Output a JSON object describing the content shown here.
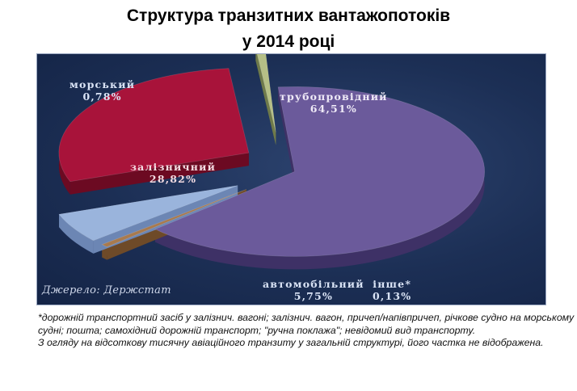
{
  "title_line1": "Структура транзитних вантажопотоків",
  "title_line2": "у 2014 році",
  "source": "Джерело: Держстат",
  "footnote_1": "*дорожній транспортний засіб у залізнич. вагоні; залізнич. вагон, причеп/напівпричеп, річкове судно на морському судні; пошта; самохідний дорожній транспорт; \"ручна поклажа\"; невідомий вид транспорту.",
  "footnote_2": "З огляду на відсоткову тисячну авіаційного транзиту у загальній структурі, його частка не відображена.",
  "chart_data": {
    "type": "pie",
    "style": "3d-exploded",
    "units": "%",
    "slices": [
      {
        "name": "трубопровідний",
        "label": "64,51%",
        "value": 64.51,
        "color": "#6b5a9b",
        "side_color": "#3e3166",
        "label_color": "#efeaf7"
      },
      {
        "name": "інше*",
        "label": "0,13%",
        "value": 0.13,
        "color": "#a87a4e",
        "side_color": "#6e4a28",
        "label_color": "#d9e3f5"
      },
      {
        "name": "автомобільний",
        "label": "5,75%",
        "value": 5.75,
        "color": "#9ab4dc",
        "side_color": "#6c86b4",
        "label_color": "#d9e3f5"
      },
      {
        "name": "залізничний",
        "label": "28,82%",
        "value": 28.82,
        "color": "#a8133a",
        "side_color": "#6c0a22",
        "label_color": "#f3dbe1"
      },
      {
        "name": "морський",
        "label": "0,78%",
        "value": 0.78,
        "color": "#b5bf86",
        "side_color": "#6f7a4a",
        "label_color": "#d9e3f5"
      }
    ]
  }
}
